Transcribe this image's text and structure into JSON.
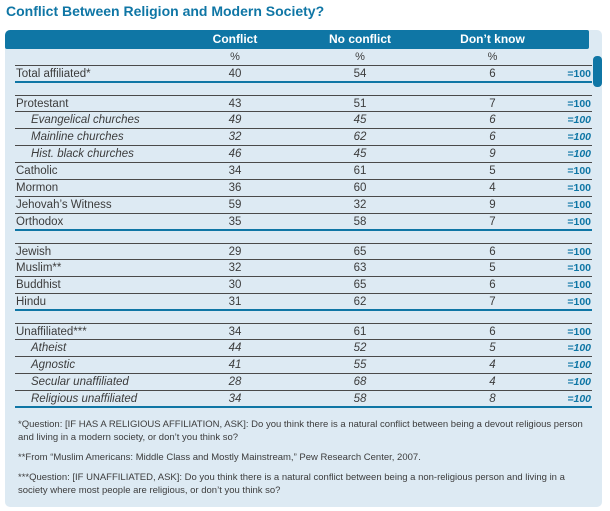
{
  "colors": {
    "accent_teal": "#0f76a5",
    "table_background": "#ddeaf3",
    "body_text": "#3c3c3c",
    "row_rule": "#4a4a4a",
    "header_text": "#ffffff"
  },
  "chart_data": {
    "type": "table",
    "title": "Conflict Between Religion and Modern Society?",
    "columns": [
      "",
      "Conflict",
      "No conflict",
      "Don’t know",
      ""
    ],
    "unit_row": [
      "%",
      "%",
      "%"
    ],
    "sections": [
      {
        "rows": [
          {
            "label": "Total affiliated*",
            "italic": false,
            "values": [
              40,
              54,
              6
            ],
            "total": "=100"
          }
        ]
      },
      {
        "rows": [
          {
            "label": "Protestant",
            "italic": false,
            "values": [
              43,
              51,
              7
            ],
            "total": "=100"
          },
          {
            "label": "Evangelical churches",
            "italic": true,
            "values": [
              49,
              45,
              6
            ],
            "total": "=100"
          },
          {
            "label": "Mainline churches",
            "italic": true,
            "values": [
              32,
              62,
              6
            ],
            "total": "=100"
          },
          {
            "label": "Hist. black churches",
            "italic": true,
            "values": [
              46,
              45,
              9
            ],
            "total": "=100"
          },
          {
            "label": "Catholic",
            "italic": false,
            "values": [
              34,
              61,
              5
            ],
            "total": "=100"
          },
          {
            "label": "Mormon",
            "italic": false,
            "values": [
              36,
              60,
              4
            ],
            "total": "=100"
          },
          {
            "label": "Jehovah’s Witness",
            "italic": false,
            "values": [
              59,
              32,
              9
            ],
            "total": "=100"
          },
          {
            "label": "Orthodox",
            "italic": false,
            "values": [
              35,
              58,
              7
            ],
            "total": "=100"
          }
        ]
      },
      {
        "rows": [
          {
            "label": "Jewish",
            "italic": false,
            "values": [
              29,
              65,
              6
            ],
            "total": "=100"
          },
          {
            "label": "Muslim**",
            "italic": false,
            "values": [
              32,
              63,
              5
            ],
            "total": "=100"
          },
          {
            "label": "Buddhist",
            "italic": false,
            "values": [
              30,
              65,
              6
            ],
            "total": "=100"
          },
          {
            "label": "Hindu",
            "italic": false,
            "values": [
              31,
              62,
              7
            ],
            "total": "=100"
          }
        ]
      },
      {
        "rows": [
          {
            "label": "Unaffiliated***",
            "italic": false,
            "values": [
              34,
              61,
              6
            ],
            "total": "=100"
          },
          {
            "label": "Atheist",
            "italic": true,
            "values": [
              44,
              52,
              5
            ],
            "total": "=100"
          },
          {
            "label": "Agnostic",
            "italic": true,
            "values": [
              41,
              55,
              4
            ],
            "total": "=100"
          },
          {
            "label": "Secular unaffiliated",
            "italic": true,
            "values": [
              28,
              68,
              4
            ],
            "total": "=100"
          },
          {
            "label": "Religious unaffiliated",
            "italic": true,
            "values": [
              34,
              58,
              8
            ],
            "total": "=100"
          }
        ]
      }
    ],
    "footnotes": [
      "*Question:  [IF HAS A RELIGIOUS AFFILIATION, ASK]: Do you think there is a natural conflict between being a devout religious person and living in a modern society, or don’t you think so?",
      "**From “Muslim Americans: Middle Class and Mostly Mainstream,” Pew Research Center, 2007.",
      "***Question:  [IF UNAFFILIATED, ASK]: Do you think there is a natural conflict between being a non-religious person and living in a society where most people are religious, or don’t you think so?"
    ],
    "layout": {
      "grid": "off",
      "legend": "none"
    }
  }
}
